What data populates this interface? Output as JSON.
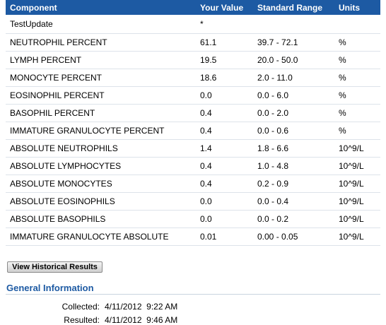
{
  "table": {
    "headers": {
      "component": "Component",
      "your_value": "Your Value",
      "standard_range": "Standard Range",
      "units": "Units"
    },
    "rows": [
      {
        "component": "TestUpdate",
        "value": "*",
        "range": "",
        "units": ""
      },
      {
        "component": "NEUTROPHIL PERCENT",
        "value": "61.1",
        "range": "39.7 - 72.1",
        "units": "%"
      },
      {
        "component": "LYMPH PERCENT",
        "value": "19.5",
        "range": "20.0 - 50.0",
        "units": "%"
      },
      {
        "component": "MONOCYTE PERCENT",
        "value": "18.6",
        "range": "2.0 - 11.0",
        "units": "%"
      },
      {
        "component": "EOSINOPHIL PERCENT",
        "value": "0.0",
        "range": "0.0 - 6.0",
        "units": "%"
      },
      {
        "component": "BASOPHIL PERCENT",
        "value": "0.4",
        "range": "0.0 - 2.0",
        "units": "%"
      },
      {
        "component": "IMMATURE GRANULOCYTE PERCENT",
        "value": "0.4",
        "range": "0.0 - 0.6",
        "units": "%"
      },
      {
        "component": "ABSOLUTE NEUTROPHILS",
        "value": "1.4",
        "range": "1.8 - 6.6",
        "units": "10^9/L"
      },
      {
        "component": "ABSOLUTE LYMPHOCYTES",
        "value": "0.4",
        "range": "1.0 - 4.8",
        "units": "10^9/L"
      },
      {
        "component": "ABSOLUTE MONOCYTES",
        "value": "0.4",
        "range": "0.2 - 0.9",
        "units": "10^9/L"
      },
      {
        "component": "ABSOLUTE EOSINOPHILS",
        "value": "0.0",
        "range": "0.0 - 0.4",
        "units": "10^9/L"
      },
      {
        "component": "ABSOLUTE BASOPHILS",
        "value": "0.0",
        "range": "0.0 - 0.2",
        "units": "10^9/L"
      },
      {
        "component": "IMMATURE GRANULOCYTE ABSOLUTE",
        "value": "0.01",
        "range": "0.00 - 0.05",
        "units": "10^9/L"
      }
    ]
  },
  "actions": {
    "historical_label": "View Historical Results"
  },
  "general_info": {
    "title": "General Information",
    "collected_label": "Collected:",
    "collected_value": "4/11/2012  9:22 AM",
    "resulted_label": "Resulted:",
    "resulted_value": "4/11/2012  9:46 AM"
  },
  "colors": {
    "header_bg": "#1d5aa3",
    "section_title": "#1d5aa3"
  }
}
